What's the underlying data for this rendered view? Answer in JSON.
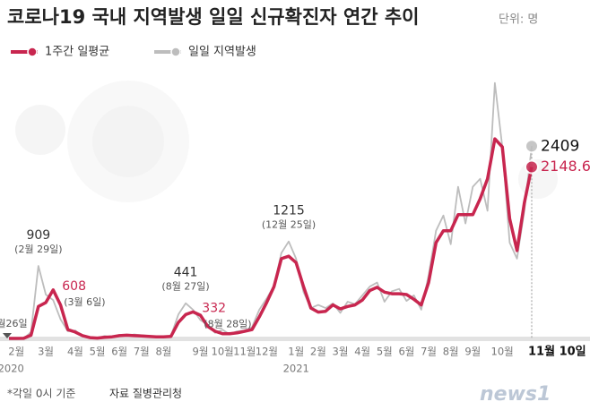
{
  "chart_data": {
    "type": "line",
    "title": "코로나19 국내 지역발생 일일 신규확진자 연간 추이",
    "unit": "단위: 명",
    "footnote": "*각일 0시 기준",
    "source": "자료 질병관리청",
    "logo": "news1",
    "ylim": [
      0,
      3500
    ],
    "year_labels": [
      "2020",
      "2021"
    ],
    "categories": [
      null,
      "2월",
      null,
      null,
      null,
      "3월",
      null,
      null,
      null,
      "4월",
      null,
      null,
      "5월",
      null,
      null,
      "6월",
      null,
      null,
      "7월",
      null,
      null,
      "8월",
      null,
      null,
      null,
      null,
      "9월",
      null,
      null,
      "10월",
      null,
      null,
      "11월",
      null,
      null,
      "12월",
      null,
      null,
      null,
      "1월",
      null,
      null,
      "2월",
      null,
      null,
      "3월",
      null,
      null,
      "4월",
      null,
      null,
      "5월",
      null,
      null,
      "6월",
      null,
      null,
      "7월",
      null,
      null,
      "8월",
      null,
      null,
      "9월",
      null,
      null,
      null,
      "10월",
      null,
      null,
      null,
      "11월 10일"
    ],
    "series": [
      {
        "name": "일일 지역발생",
        "color": "#bdbdbd",
        "values": [
          0,
          0,
          0,
          80,
          909,
          550,
          480,
          240,
          90,
          100,
          25,
          8,
          3,
          30,
          15,
          45,
          35,
          50,
          40,
          30,
          15,
          25,
          30,
          300,
          441,
          359,
          230,
          170,
          70,
          110,
          50,
          90,
          100,
          140,
          360,
          500,
          660,
          1070,
          1215,
          1000,
          580,
          380,
          420,
          380,
          440,
          320,
          460,
          430,
          540,
          650,
          700,
          460,
          590,
          620,
          470,
          540,
          360,
          790,
          1350,
          1540,
          1180,
          1900,
          1440,
          1900,
          2000,
          1600,
          3200,
          2400,
          1200,
          1000,
          1600,
          2409
        ],
        "value_labels": [
          null,
          null,
          null,
          null,
          "909",
          null,
          null,
          null,
          null,
          null,
          null,
          null,
          null,
          null,
          null,
          null,
          null,
          null,
          null,
          null,
          null,
          null,
          null,
          null,
          "441",
          null,
          null,
          null,
          null,
          null,
          null,
          null,
          null,
          null,
          null,
          null,
          null,
          null,
          "1215",
          null,
          null,
          null,
          null,
          null,
          null,
          null,
          null,
          null,
          null,
          null,
          null,
          null,
          null,
          null,
          null,
          null,
          null,
          null,
          null,
          null,
          null,
          null,
          null,
          null,
          null,
          null,
          null,
          null,
          null,
          null,
          null,
          "2409"
        ],
        "notes": [
          "1월26일",
          null,
          null,
          null,
          "(2월 29일)",
          null,
          null,
          null,
          null,
          null,
          null,
          null,
          null,
          null,
          null,
          null,
          null,
          null,
          null,
          null,
          null,
          null,
          null,
          null,
          "(8월 27일)",
          null,
          null,
          null,
          null,
          null,
          null,
          null,
          null,
          null,
          null,
          null,
          null,
          null,
          "(12월 25일)",
          null,
          null,
          null,
          null,
          null,
          null,
          null,
          null,
          null,
          null,
          null,
          null,
          null,
          null,
          null,
          null,
          null,
          null,
          null,
          null,
          null,
          null,
          null,
          null,
          null,
          null,
          null,
          null,
          null,
          null,
          null,
          null,
          null
        ]
      },
      {
        "name": "1주간 일평균",
        "color": "#c8264f",
        "values": [
          0,
          0,
          1,
          40,
          400,
          450,
          608,
          420,
          110,
          80,
          35,
          10,
          5,
          15,
          20,
          35,
          40,
          35,
          30,
          25,
          20,
          20,
          25,
          200,
          300,
          332,
          290,
          150,
          90,
          60,
          60,
          70,
          90,
          110,
          270,
          450,
          650,
          1000,
          1030,
          950,
          650,
          380,
          330,
          340,
          420,
          370,
          400,
          420,
          480,
          600,
          640,
          580,
          560,
          560,
          550,
          490,
          420,
          700,
          1200,
          1350,
          1350,
          1550,
          1550,
          1550,
          1750,
          2000,
          2500,
          2400,
          1500,
          1100,
          1700,
          2148.6
        ],
        "value_labels": [
          null,
          null,
          null,
          null,
          null,
          null,
          "608",
          null,
          null,
          null,
          null,
          null,
          null,
          null,
          null,
          null,
          null,
          null,
          null,
          null,
          null,
          null,
          null,
          null,
          null,
          "332",
          null,
          null,
          null,
          null,
          null,
          null,
          null,
          null,
          null,
          null,
          null,
          null,
          null,
          null,
          null,
          null,
          null,
          null,
          null,
          null,
          null,
          null,
          null,
          null,
          null,
          null,
          null,
          null,
          null,
          null,
          null,
          null,
          null,
          null,
          null,
          null,
          null,
          null,
          null,
          null,
          null,
          null,
          null,
          null,
          null,
          "2148.6"
        ],
        "notes": [
          null,
          null,
          null,
          null,
          null,
          null,
          "(3월 6일)",
          null,
          null,
          null,
          null,
          null,
          null,
          null,
          null,
          null,
          null,
          null,
          null,
          null,
          null,
          null,
          null,
          null,
          null,
          "(8월 28일)",
          null,
          null,
          null,
          null,
          null,
          null,
          null,
          null,
          null,
          null,
          null,
          null,
          null,
          null,
          null,
          null,
          null,
          null,
          null,
          null,
          null,
          null,
          null,
          null,
          null,
          null,
          null,
          null,
          null,
          null,
          null,
          null,
          null,
          null,
          null,
          null,
          null,
          null,
          null,
          null,
          null,
          null,
          null,
          null,
          null,
          null
        ]
      }
    ]
  }
}
